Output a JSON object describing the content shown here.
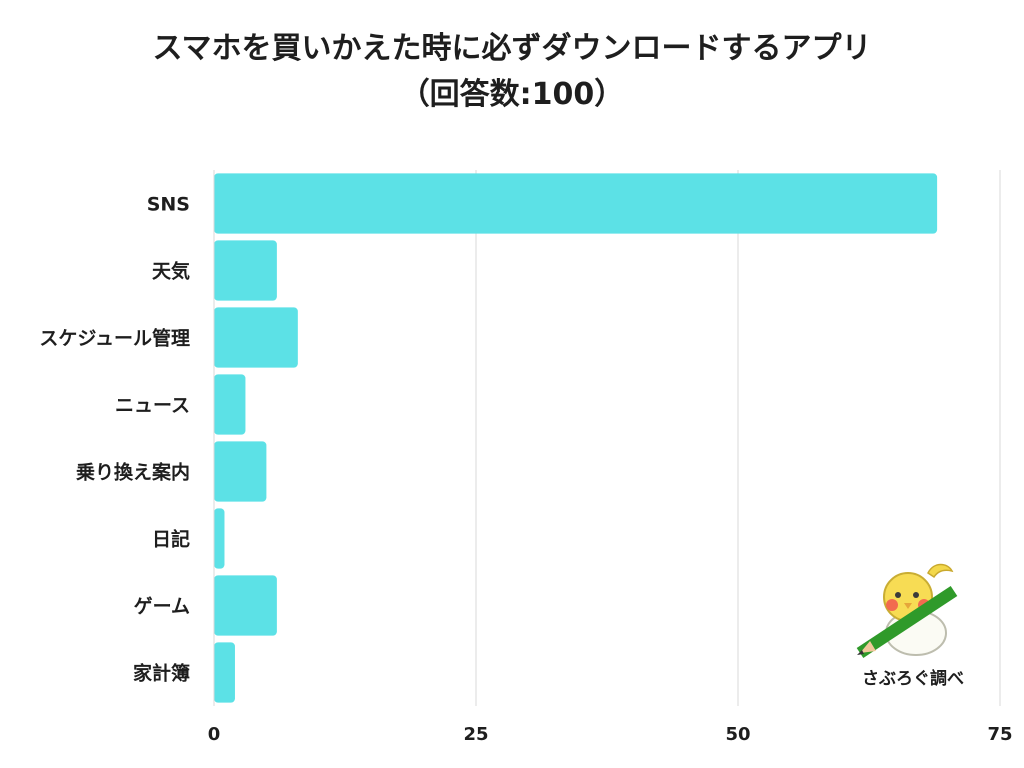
{
  "title": {
    "line1": "スマホを買いかえた時に必ずダウンロードするアプリ",
    "line2": "（回答数:100）"
  },
  "credit": "さぶろぐ調べ",
  "colors": {
    "bar": "#5ce1e6",
    "grid": "#d9d9d9",
    "text": "#1e1e1e"
  },
  "chart_data": {
    "type": "bar",
    "orientation": "horizontal",
    "categories": [
      "SNS",
      "天気",
      "スケジュール管理",
      "ニュース",
      "乗り換え案内",
      "日記",
      "ゲーム",
      "家計簿"
    ],
    "values": [
      69,
      6,
      8,
      3,
      5,
      1,
      6,
      2
    ],
    "xlim": [
      0,
      75
    ],
    "xticks": [
      0,
      25,
      50,
      75
    ],
    "grid": true,
    "legend": "none"
  }
}
